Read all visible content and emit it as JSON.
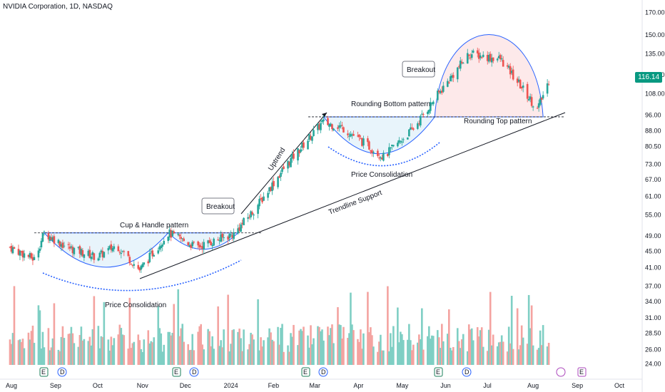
{
  "header": {
    "title": "NVIDIA Corporation, 1D, NASDAQ"
  },
  "last_price": "116.14",
  "colors": {
    "up": "#26a69a",
    "down": "#ef5350",
    "vol_up": "#7fcfc4",
    "vol_down": "#f4a3a0",
    "cup_fill": "#e8f4fb",
    "top_fill": "#fde9ea",
    "arc": "#2962ff",
    "line": "#131722",
    "event_earn": "#1a7f5a",
    "event_div": "#2962ff"
  },
  "chart_data": {
    "type": "candlestick",
    "title": "NVIDIA Corporation, 1D, NASDAQ",
    "y_scale": "log",
    "ylim": [
      23.5,
      175
    ],
    "y_ticks": [
      "170.00",
      "150.00",
      "135.00",
      "120.00",
      "108.00",
      "96.00",
      "88.00",
      "80.50",
      "73.00",
      "67.00",
      "61.00",
      "55.00",
      "49.00",
      "45.00",
      "41.00",
      "37.00",
      "34.00",
      "31.00",
      "28.50",
      "26.00",
      "24.00"
    ],
    "x_ticks": [
      "Aug",
      "Sep",
      "Oct",
      "Nov",
      "Dec",
      "2024",
      "Feb",
      "Mar",
      "Apr",
      "May",
      "Jun",
      "Jul",
      "Aug",
      "Sep",
      "Oct"
    ],
    "price_path": [
      {
        "date": "2023-08-01",
        "close": 46.0
      },
      {
        "date": "2023-08-18",
        "close": 43.0
      },
      {
        "date": "2023-08-25",
        "close": 49.8
      },
      {
        "date": "2023-09-10",
        "close": 46.0
      },
      {
        "date": "2023-10-01",
        "close": 43.5
      },
      {
        "date": "2023-10-15",
        "close": 46.5
      },
      {
        "date": "2023-10-31",
        "close": 40.5
      },
      {
        "date": "2023-11-20",
        "close": 49.8
      },
      {
        "date": "2023-12-10",
        "close": 46.0
      },
      {
        "date": "2024-01-05",
        "close": 49.5
      },
      {
        "date": "2024-01-20",
        "close": 57.0
      },
      {
        "date": "2024-02-10",
        "close": 72.0
      },
      {
        "date": "2024-03-07",
        "close": 92.0
      },
      {
        "date": "2024-03-20",
        "close": 90.0
      },
      {
        "date": "2024-04-19",
        "close": 76.0
      },
      {
        "date": "2024-05-10",
        "close": 89.0
      },
      {
        "date": "2024-05-24",
        "close": 104.0
      },
      {
        "date": "2024-06-18",
        "close": 135.0
      },
      {
        "date": "2024-07-10",
        "close": 131.0
      },
      {
        "date": "2024-07-25",
        "close": 112.0
      },
      {
        "date": "2024-08-05",
        "close": 99.0
      },
      {
        "date": "2024-08-13",
        "close": 116.14
      }
    ],
    "annotations": [
      "Cup & Handle pattern",
      "Price Consolidation",
      "Breakout",
      "Uptrend",
      "Trendline Support",
      "Rounding Bottom pattern",
      "Price Consolidation",
      "Breakout",
      "Rounding Top pattern"
    ],
    "levels": {
      "cup_handle_resistance": 49.8,
      "rounding_bottom_resistance": 95.0
    },
    "events": [
      "E",
      "D",
      "E",
      "D",
      "E",
      "D",
      "E",
      "D",
      "E"
    ]
  }
}
